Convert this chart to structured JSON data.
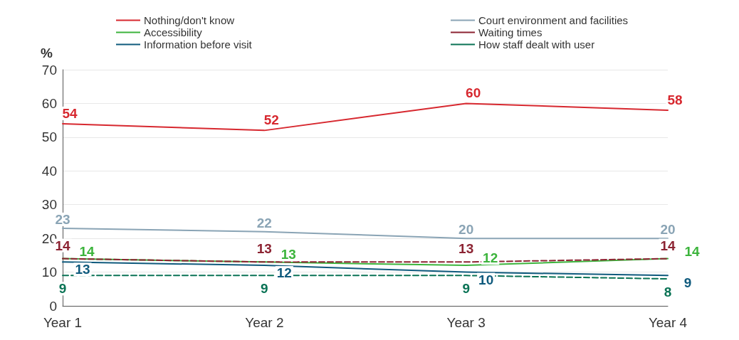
{
  "chart_data": {
    "type": "line",
    "ylabel": "%",
    "categories": [
      "Year 1",
      "Year 2",
      "Year 3",
      "Year 4"
    ],
    "series": [
      {
        "name": "Nothing/don't know",
        "color": "#d7282f",
        "values": [
          54,
          52,
          60,
          58
        ]
      },
      {
        "name": "Court environment and facilities",
        "color": "#8aa4b5",
        "values": [
          23,
          22,
          20,
          20
        ]
      },
      {
        "name": "Accessibility",
        "color": "#3cb43c",
        "values": [
          14,
          13,
          12,
          14
        ]
      },
      {
        "name": "Waiting times",
        "color": "#8c2332",
        "values": [
          14,
          13,
          13,
          14
        ],
        "line_style": "dashed"
      },
      {
        "name": "Information before visit",
        "color": "#0f5a7d",
        "values": [
          13,
          12,
          10,
          9
        ]
      },
      {
        "name": "How staff dealt with user",
        "color": "#0a7355",
        "values": [
          9,
          9,
          9,
          8
        ],
        "line_style": "dashed"
      }
    ],
    "ylim": [
      0,
      70
    ],
    "yticks": [
      0,
      10,
      20,
      30,
      40,
      50,
      60,
      70
    ],
    "grid": "y",
    "legend": "top",
    "marker": "none",
    "data_labels": true
  }
}
